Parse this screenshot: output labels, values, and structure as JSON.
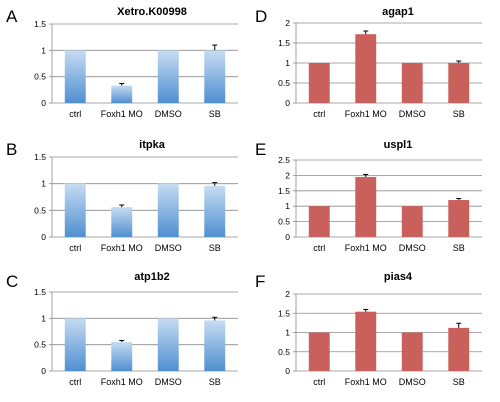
{
  "colors": {
    "blue_top": "#c6dcf2",
    "blue_bottom": "#4f8fd0",
    "red": "#c9605b",
    "grid": "#8c8c8c",
    "error": "#000000"
  },
  "chart_data": [
    {
      "panel": "A",
      "type": "bar",
      "title": "Xetro.K00998",
      "categories": [
        "ctrl",
        "Foxh1 MO",
        "DMSO",
        "SB"
      ],
      "values": [
        1,
        0.33,
        1,
        1
      ],
      "errors": [
        0,
        0.04,
        0,
        0.1
      ],
      "ylim": [
        0,
        1.5
      ],
      "yticks": [
        "0",
        "0.5",
        "1",
        "1.5"
      ],
      "ytick_values": [
        0,
        0.5,
        1,
        1.5
      ],
      "color": "blue",
      "grid": true
    },
    {
      "panel": "B",
      "type": "bar",
      "title": "itpka",
      "categories": [
        "ctrl",
        "Foxh1 MO",
        "DMSO",
        "SB"
      ],
      "values": [
        1,
        0.56,
        1,
        0.96
      ],
      "errors": [
        0,
        0.04,
        0,
        0.06
      ],
      "ylim": [
        0,
        1.5
      ],
      "yticks": [
        "0",
        "0.5",
        "1",
        "1.5"
      ],
      "ytick_values": [
        0,
        0.5,
        1,
        1.5
      ],
      "color": "blue",
      "grid": true
    },
    {
      "panel": "C",
      "type": "bar",
      "title": "atp1b2",
      "categories": [
        "ctrl",
        "Foxh1 MO",
        "DMSO",
        "SB"
      ],
      "values": [
        1,
        0.55,
        1,
        0.96
      ],
      "errors": [
        0,
        0.03,
        0,
        0.06
      ],
      "ylim": [
        0,
        1.5
      ],
      "yticks": [
        "0",
        "0.5",
        "1",
        "1.5"
      ],
      "ytick_values": [
        0,
        0.5,
        1,
        1.5
      ],
      "color": "blue",
      "grid": true
    },
    {
      "panel": "D",
      "type": "bar",
      "title": "agap1",
      "categories": [
        "ctrl",
        "Foxh1 MO",
        "DMSO",
        "SB"
      ],
      "values": [
        1,
        1.72,
        1,
        1
      ],
      "errors": [
        0,
        0.08,
        0,
        0.05
      ],
      "ylim": [
        0,
        2
      ],
      "yticks": [
        "0",
        "0.5",
        "1",
        "1.5",
        "2"
      ],
      "ytick_values": [
        0,
        0.5,
        1,
        1.5,
        2
      ],
      "color": "red",
      "grid": true
    },
    {
      "panel": "E",
      "type": "bar",
      "title": "uspl1",
      "categories": [
        "ctrl",
        "Foxh1 MO",
        "DMSO",
        "SB"
      ],
      "values": [
        1,
        1.95,
        1,
        1.2
      ],
      "errors": [
        0,
        0.08,
        0,
        0.05
      ],
      "ylim": [
        0,
        2.5
      ],
      "yticks": [
        "0",
        "0.5",
        "1",
        "1.5",
        "2",
        "2.5"
      ],
      "ytick_values": [
        0,
        0.5,
        1,
        1.5,
        2,
        2.5
      ],
      "color": "red",
      "grid": true
    },
    {
      "panel": "F",
      "type": "bar",
      "title": "pias4",
      "categories": [
        "ctrl",
        "Foxh1 MO",
        "DMSO",
        "SB"
      ],
      "values": [
        1,
        1.54,
        1,
        1.12
      ],
      "errors": [
        0,
        0.06,
        0,
        0.12
      ],
      "ylim": [
        0,
        2
      ],
      "yticks": [
        "0",
        "0.5",
        "1",
        "1.5",
        "2"
      ],
      "ytick_values": [
        0,
        0.5,
        1,
        1.5,
        2
      ],
      "color": "red",
      "grid": true
    }
  ]
}
